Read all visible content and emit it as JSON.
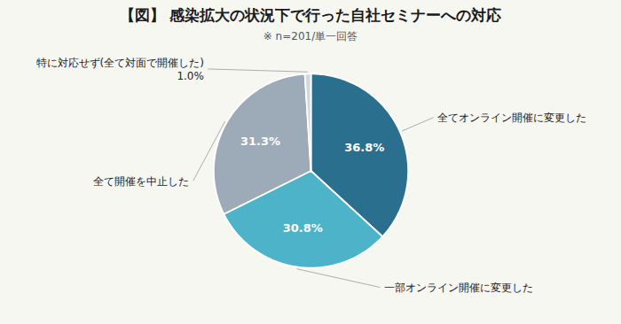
{
  "chart_data": {
    "type": "pie",
    "title": "【図】 感染拡大の状況下で行った自社セミナーへの対応",
    "subtitle": "※ n=201/単一回答",
    "categories": [
      "全てオンライン開催に変更した",
      "一部オンライン開催に変更した",
      "全て開催を中止した",
      "特に対応せず(全て対面で開催した)\n1.0%"
    ],
    "values": [
      36.8,
      30.8,
      31.3,
      1.0
    ],
    "value_labels": [
      "36.8%",
      "30.8%",
      "31.3%",
      null
    ],
    "data_labels": true,
    "colors": [
      "#2b6f8e",
      "#4db3c8",
      "#9daab8",
      "#d0d8e0"
    ]
  }
}
